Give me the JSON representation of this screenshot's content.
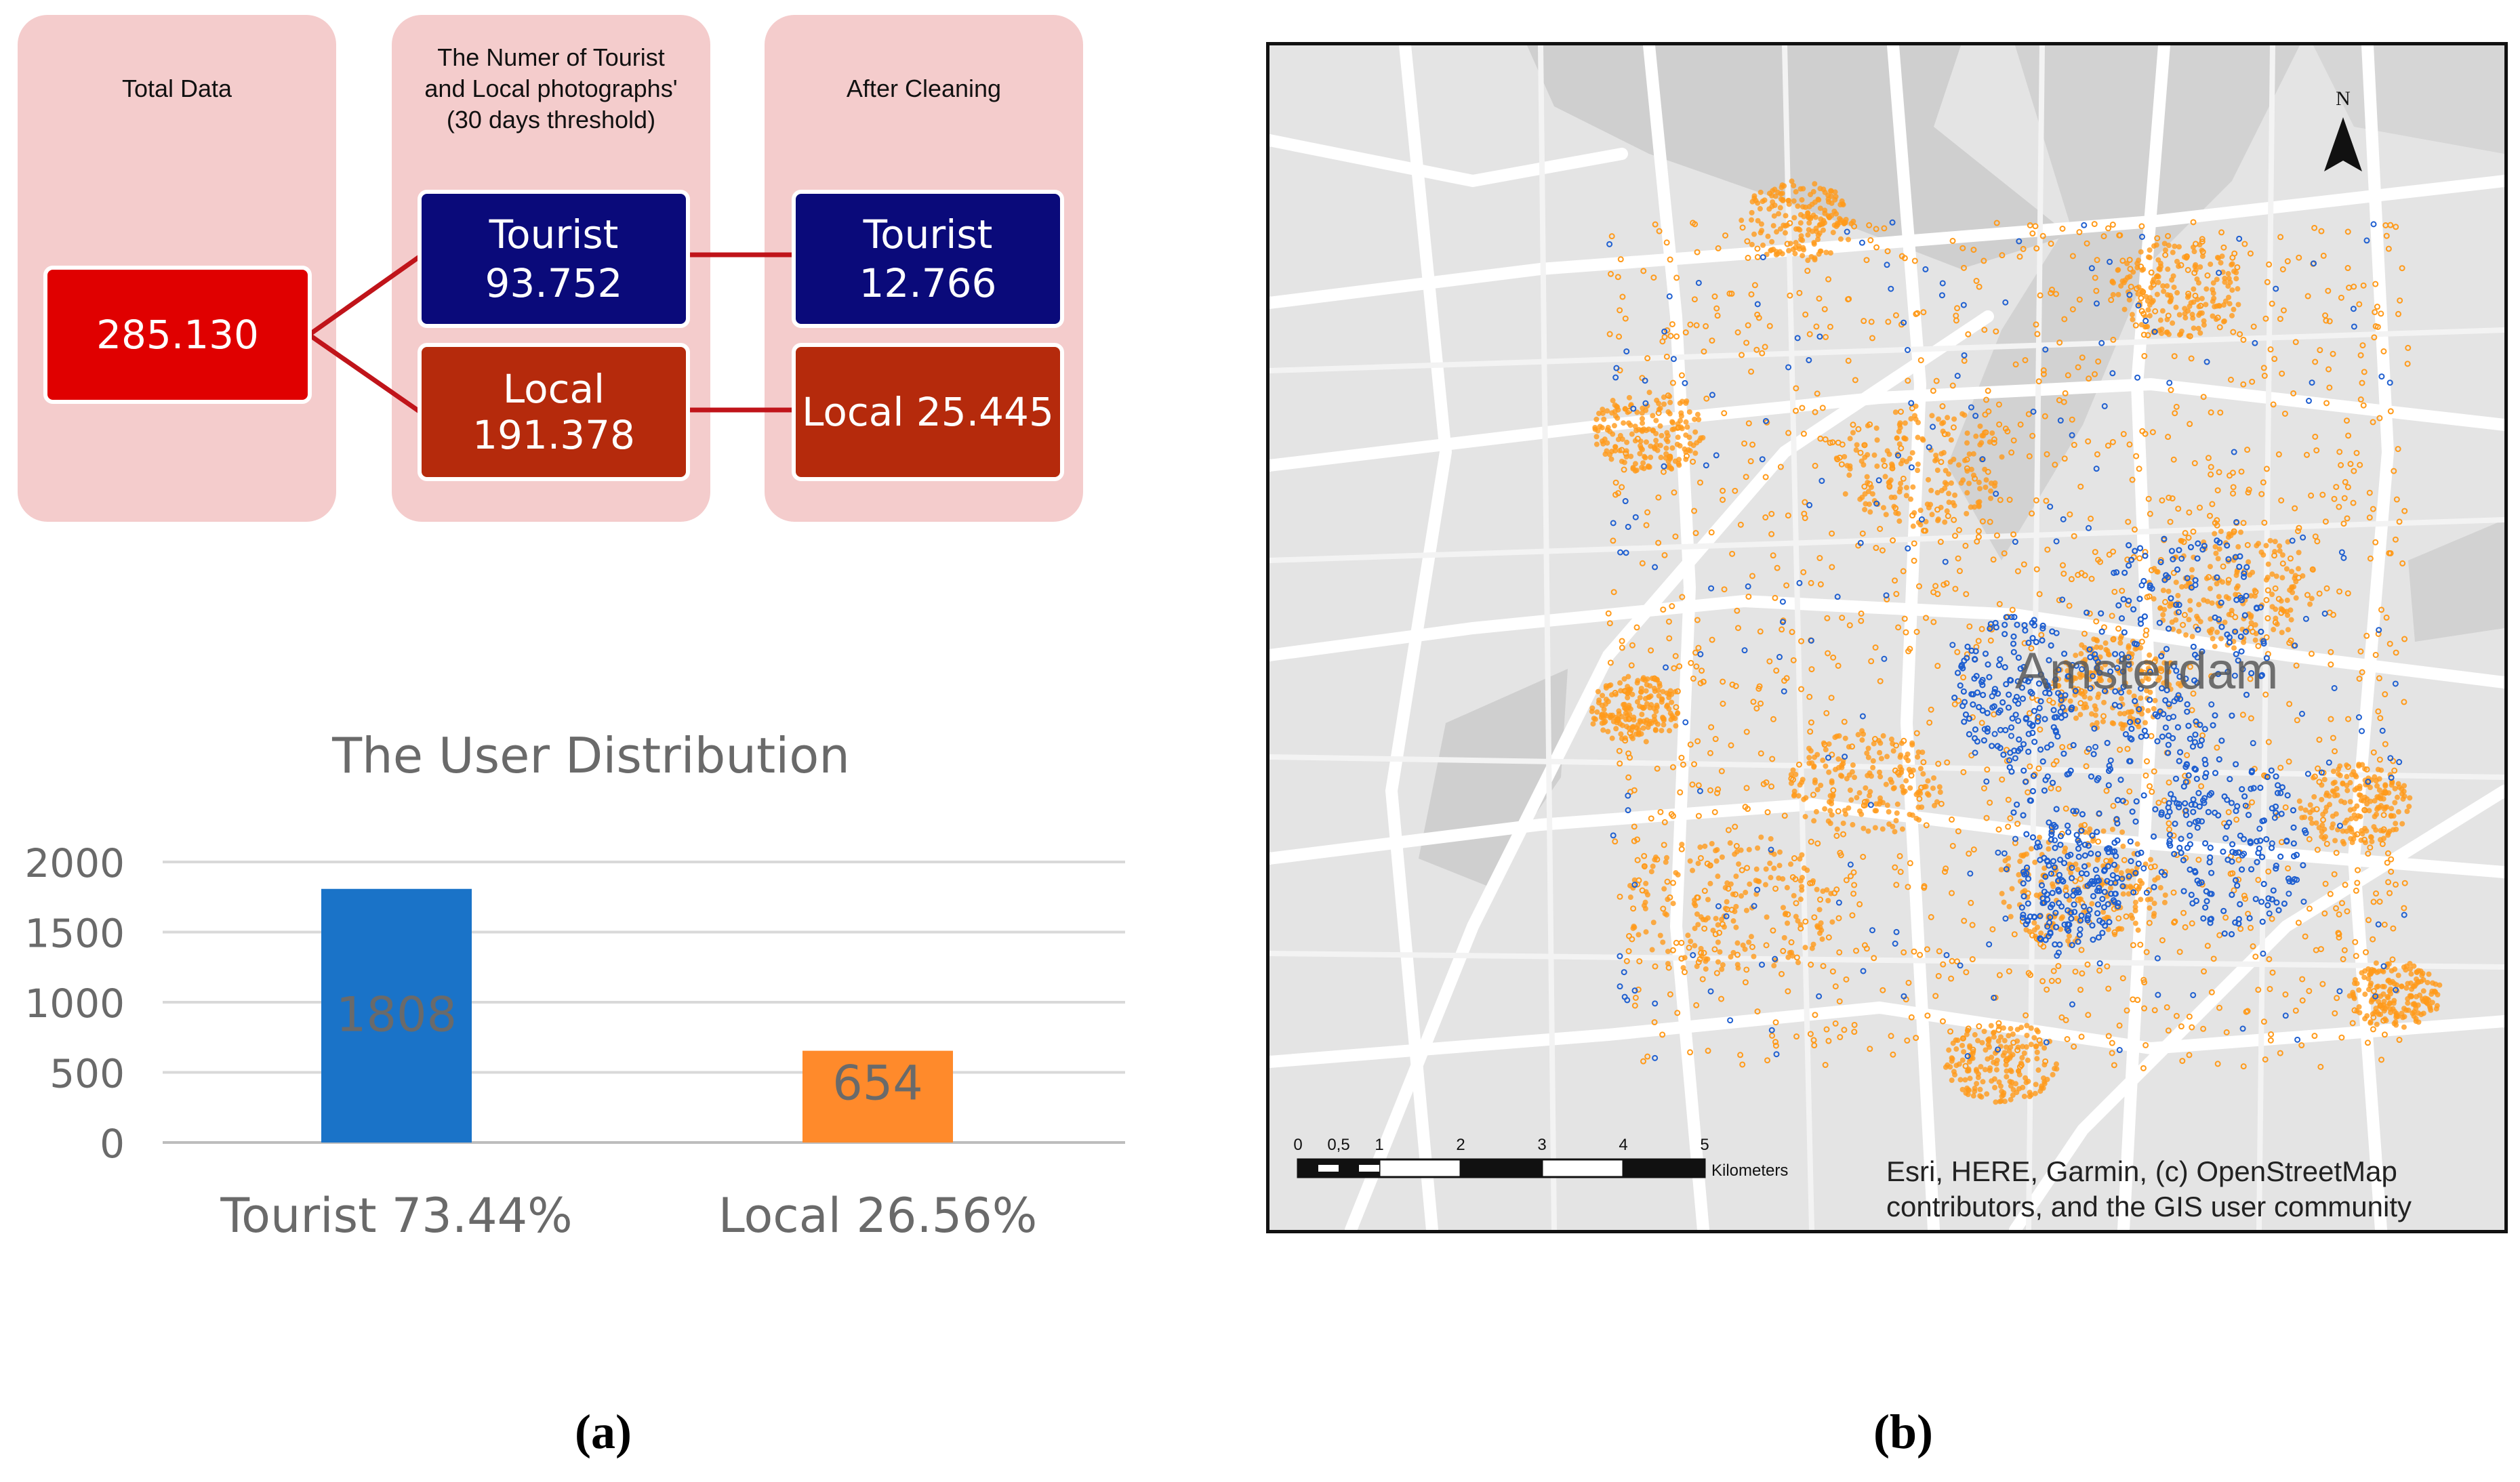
{
  "flow": {
    "columns": [
      {
        "title": "Total Data"
      },
      {
        "title": "The Numer of Tourist\nand Local photographs'\n(30 days threshold)"
      },
      {
        "title": "After Cleaning"
      }
    ],
    "total": "285.130",
    "tourist_before": "Tourist\n93.752",
    "local_before": "Local 191.378",
    "tourist_after": "Tourist\n12.766",
    "local_after": "Local 25.445"
  },
  "chart_data": {
    "type": "bar",
    "title": "The User Distribution",
    "categories": [
      "Tourist 73.44%",
      "Local 26.56%"
    ],
    "values": [
      1808,
      654
    ],
    "value_labels": [
      "1808",
      "654"
    ],
    "colors": [
      "#1a73c8",
      "#ff8a2b"
    ],
    "yticks": [
      "0",
      "500",
      "1000",
      "1500",
      "2000"
    ],
    "ylim": [
      0,
      2000
    ],
    "grid": true
  },
  "map": {
    "city_label": "Amsterdam",
    "north_label": "N",
    "scale_ticks": [
      "0",
      "0,5",
      "1",
      "2",
      "3",
      "4",
      "5"
    ],
    "scale_unit": "Kilometers",
    "attribution_line1": "Esri, HERE, Garmin, (c) OpenStreetMap",
    "attribution_line2": "contributors, and the GIS user community",
    "colors": {
      "tourist": "#1f5fd0",
      "local": "#ff9a1a",
      "road": "#ffffff",
      "water": "#c9c9c9"
    }
  },
  "captions": {
    "a": "(a)",
    "b": "(b)"
  }
}
